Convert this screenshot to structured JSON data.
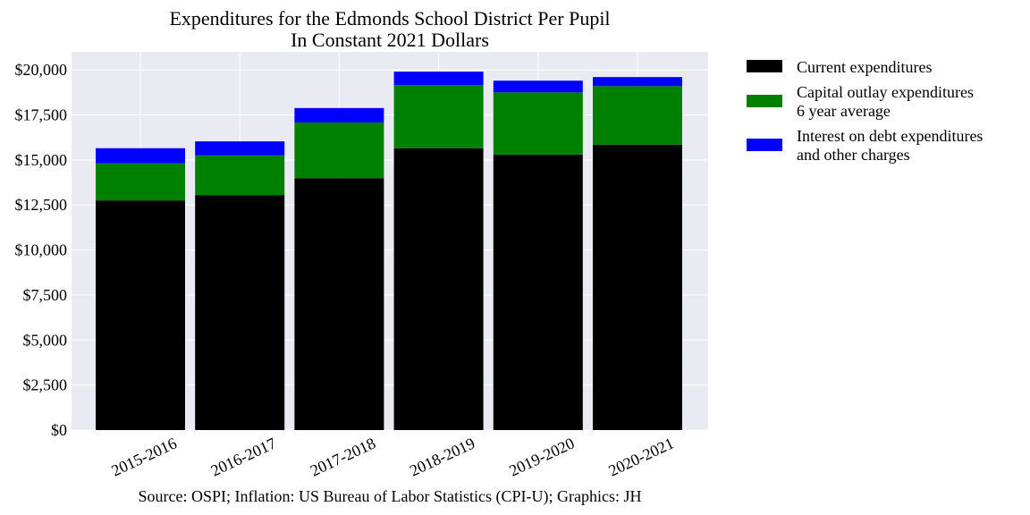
{
  "chart_data": {
    "type": "bar",
    "stacked": true,
    "title": "Expenditures for the Edmonds School District Per Pupil",
    "subtitle": "In Constant 2021 Dollars",
    "xlabel": "",
    "ylabel": "",
    "categories": [
      "2015-2016",
      "2016-2017",
      "2017-2018",
      "2018-2019",
      "2019-2020",
      "2020-2021"
    ],
    "series": [
      {
        "name": "Current expenditures",
        "color": "#000000",
        "values": [
          12750,
          13050,
          13980,
          15650,
          15300,
          15850
        ]
      },
      {
        "name": "Capital outlay expenditures",
        "name_line2": "6 year average",
        "color": "#008000",
        "values": [
          2060,
          2200,
          3100,
          3500,
          3450,
          3250
        ]
      },
      {
        "name": "Interest on debt expenditures",
        "name_line2": "and other charges",
        "color": "#0000ff",
        "values": [
          840,
          780,
          800,
          750,
          650,
          500
        ]
      }
    ],
    "ylim": [
      0,
      21000
    ],
    "yticks": [
      0,
      2500,
      5000,
      7500,
      10000,
      12500,
      15000,
      17500,
      20000
    ],
    "ytick_labels": [
      "$0",
      "$2,500",
      "$5,000",
      "$7,500",
      "$10,000",
      "$12,500",
      "$15,000",
      "$17,500",
      "$20,000"
    ],
    "grid": true,
    "legend_position": "outside-right",
    "source": "Source: OSPI; Inflation: US Bureau of Labor Statistics (CPI-U); Graphics: JH",
    "background_color": "#eaeaf2"
  }
}
